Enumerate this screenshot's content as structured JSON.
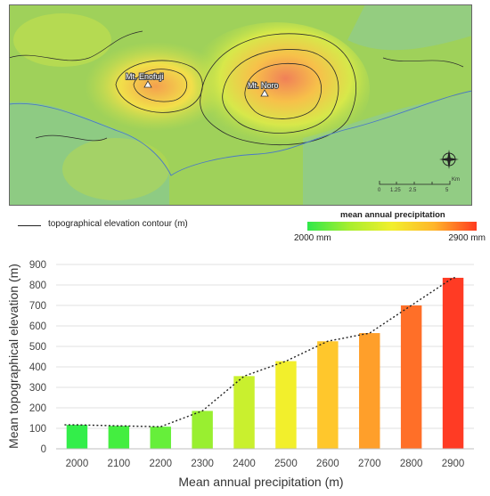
{
  "map": {
    "labels": {
      "enofuji": "Mt. Enofuji",
      "noro": "Mt. Noro"
    },
    "scale_ticks": [
      "0",
      "1.25",
      "2.5",
      "5"
    ],
    "scale_unit": "Km"
  },
  "legend": {
    "contour_label": "topographical elevation contour (m)",
    "precip_title": "mean annual precipitation",
    "precip_min": "2000 mm",
    "precip_max": "2900 mm"
  },
  "colors": {
    "bars": [
      "#33ee4a",
      "#44ee40",
      "#66ef3a",
      "#99ef30",
      "#c9f02e",
      "#f2ef2c",
      "#ffc72c",
      "#ff9f2a",
      "#ff6f28",
      "#ff3b24"
    ]
  },
  "chart_data": {
    "type": "bar",
    "categories": [
      "2000",
      "2100",
      "2200",
      "2300",
      "2400",
      "2500",
      "2600",
      "2700",
      "2800",
      "2900"
    ],
    "values": [
      117,
      112,
      108,
      185,
      355,
      428,
      525,
      565,
      700,
      835
    ],
    "title": "",
    "xlabel": "Mean annual precipitation (m)",
    "ylabel": "Mean topographical elevation (m)",
    "ylim": [
      0,
      900
    ],
    "yticks": [
      "0",
      "100",
      "200",
      "300",
      "400",
      "500",
      "600",
      "700",
      "800",
      "900"
    ],
    "trendline": "dotted",
    "grid": true
  }
}
